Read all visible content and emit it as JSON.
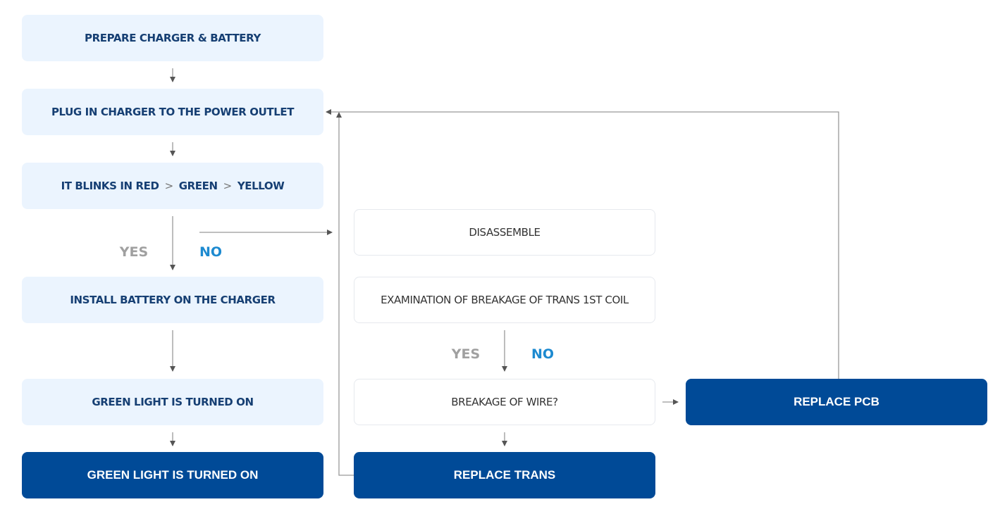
{
  "steps_left": [
    "PREPARE CHARGER & BATTERY",
    "PLUG IN CHARGER TO THE POWER OUTLET",
    [
      "IT BLINKS IN RED",
      "GREEN",
      "YELLOW"
    ],
    "INSTALL BATTERY ON THE CHARGER",
    "GREEN LIGHT IS TURNED ON",
    "GREEN LIGHT IS TURNED ON"
  ],
  "steps_middle": [
    "DISASSEMBLE",
    "EXAMINATION OF BREAKAGE OF TRANS 1ST COIL",
    "BREAKAGE OF WIRE?",
    "REPLACE TRANS"
  ],
  "steps_right": [
    "REPLACE PCB"
  ],
  "separator": ">",
  "labels": {
    "yes": "YES",
    "no": "NO"
  },
  "colors": {
    "light_box": "#ebf4fe",
    "dark_box": "#004a97",
    "no_label": "#1d8ad0",
    "yes_label": "#a0a0a0",
    "connector": "#999999"
  }
}
